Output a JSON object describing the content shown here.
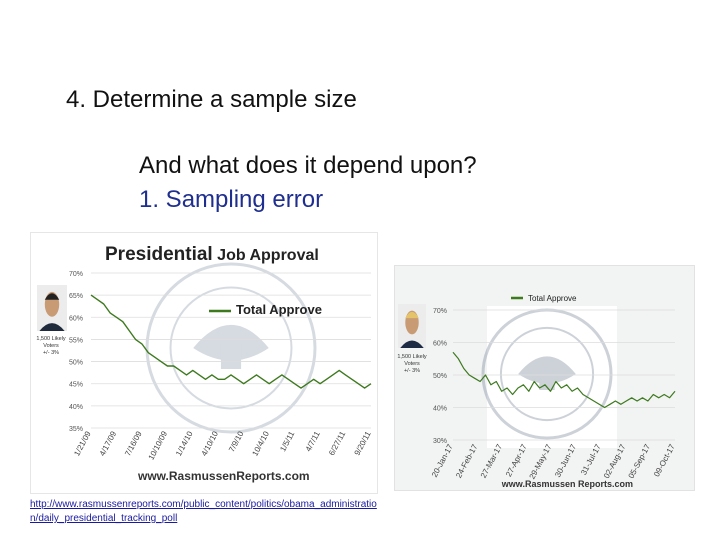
{
  "slide": {
    "heading": "4. Determine a sample size",
    "question": "And what does it depend upon?",
    "point": "1.  Sampling error",
    "link": "http://www.rasmussenreports.com/public_content/politics/obama_administration/daily_presidential_tracking_poll"
  },
  "colors": {
    "line": "#3d7a1e",
    "link": "#1a1aa0",
    "point": "#1f2f8f"
  },
  "chart_data": [
    {
      "type": "line",
      "title_bold": "Presidential",
      "title_rest": " Job Approval",
      "legend": "Total Approve",
      "y_ticks": [
        "70%",
        "65%",
        "60%",
        "55%",
        "50%",
        "45%",
        "40%",
        "35%"
      ],
      "ylim": [
        35,
        70
      ],
      "x_ticks": [
        "1/21/09",
        "4/17/09",
        "7/16/09",
        "10/10/09",
        "1/14/10",
        "4/10/10",
        "7/9/10",
        "10/4/10",
        "1/5/11",
        "4/7/11",
        "6/27/11",
        "9/20/11"
      ],
      "sample_note": "1,500 Likely Voters +/- 3%",
      "source": "www.RasmussenReports.com",
      "series": [
        {
          "values": [
            65,
            64,
            63,
            61,
            60,
            59,
            57,
            55,
            54,
            52,
            51,
            50,
            49,
            49,
            48,
            47,
            48,
            47,
            46,
            47,
            46,
            46,
            47,
            46,
            45,
            46,
            47,
            46,
            45,
            46,
            47,
            46,
            45,
            44,
            45,
            46,
            45,
            46,
            47,
            48,
            47,
            46,
            45,
            44,
            45
          ]
        }
      ]
    },
    {
      "type": "line",
      "legend": "Total Approve",
      "y_ticks": [
        "70%",
        "60%",
        "50%",
        "40%",
        "30%"
      ],
      "ylim": [
        30,
        70
      ],
      "x_ticks": [
        "20-Jan-17",
        "24-Feb-17",
        "27-Mar-17",
        "27-Apr-17",
        "29-May-17",
        "30-Jun-17",
        "31-Jul-17",
        "02-Aug-17",
        "05-Sep-17",
        "09-Oct-17"
      ],
      "sample_note": "1,500 Likely Voters +/- 3%",
      "source": "www.Rasmussen Reports.com",
      "series": [
        {
          "values": [
            57,
            55,
            52,
            50,
            49,
            48,
            50,
            47,
            48,
            45,
            46,
            44,
            46,
            47,
            45,
            48,
            46,
            47,
            45,
            48,
            46,
            47,
            45,
            46,
            44,
            43,
            42,
            41,
            40,
            41,
            42,
            41,
            42,
            43,
            42,
            43,
            42,
            44,
            43,
            44,
            43,
            45
          ]
        }
      ]
    }
  ]
}
